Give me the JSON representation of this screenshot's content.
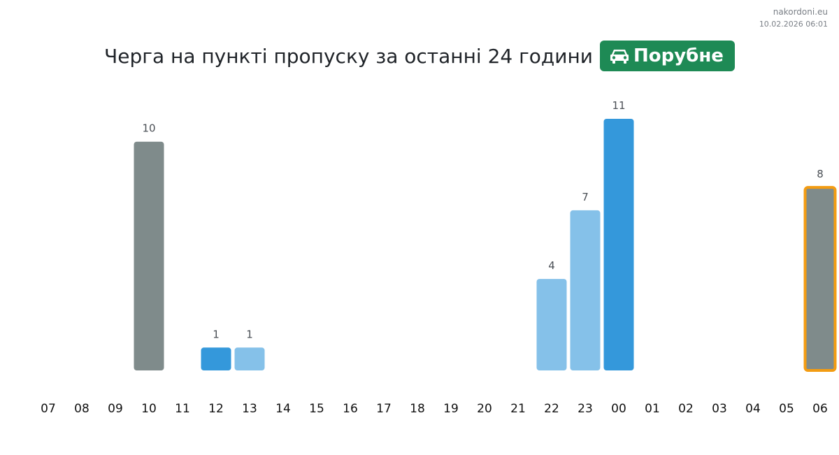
{
  "site": {
    "domain": "nakordoni.eu",
    "timestamp": "10.02.2026 06:01"
  },
  "header": {
    "title": "Черга на пункті пропуску за останні 24 години",
    "badge_label": "Порубне",
    "badge_icon": "car-icon",
    "badge_color": "#1e8a55"
  },
  "chart_data": {
    "type": "bar",
    "title": "Черга на пункті пропуску за останні 24 години",
    "categories": [
      "07",
      "08",
      "09",
      "10",
      "11",
      "12",
      "13",
      "14",
      "15",
      "16",
      "17",
      "18",
      "19",
      "20",
      "21",
      "22",
      "23",
      "00",
      "01",
      "02",
      "03",
      "04",
      "05",
      "06"
    ],
    "values": [
      null,
      null,
      null,
      10,
      null,
      1,
      1,
      null,
      null,
      null,
      null,
      null,
      null,
      null,
      null,
      4,
      7,
      11,
      null,
      null,
      null,
      null,
      null,
      8
    ],
    "bar_colors": [
      null,
      null,
      null,
      "#7f8b8b",
      null,
      "#3498db",
      "#85c1e9",
      null,
      null,
      null,
      null,
      null,
      null,
      null,
      null,
      "#85c1e9",
      "#85c1e9",
      "#3498db",
      null,
      null,
      null,
      null,
      null,
      "#7f8b8b"
    ],
    "highlighted_category": "06",
    "highlight_color": "#f39c12",
    "xlabel": "",
    "ylabel": "",
    "ylim": [
      0,
      11
    ],
    "grid": false,
    "legend": "none"
  }
}
